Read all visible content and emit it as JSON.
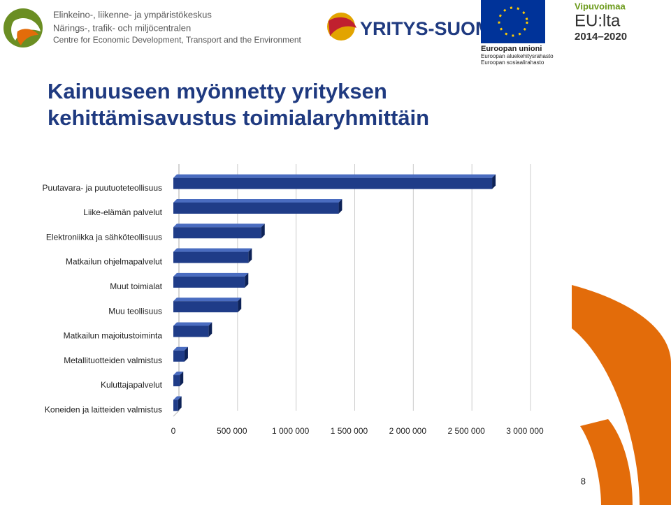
{
  "header": {
    "ely_lines": [
      "Elinkeino-, liikenne- ja ympäristökeskus",
      "Närings-, trafik- och miljöcentralen",
      "Centre for Economic Development, Transport and the Environment"
    ],
    "yritys_suomi": "YRITYS-SUOMI",
    "eu_lines": [
      "Euroopan unioni",
      "Euroopan aluekehitysrahasto",
      "Euroopan sosiaalirahasto"
    ],
    "vipuvoimaa": [
      "Vipuvoimaa",
      "EU:lta",
      "2014–2020"
    ]
  },
  "chart_data": {
    "type": "bar",
    "orientation": "horizontal",
    "title": "Kainuuseen myönnetty yrityksen kehittämisavustus toimialaryhmittäin",
    "categories": [
      "Puutavara- ja puutuoteteollisuus",
      "Liike-elämän palvelut",
      "Elektroniikka ja sähköteollisuus",
      "Matkailun ohjelmapalvelut",
      "Muut toimialat",
      "Muu teollisuus",
      "Matkailun majoitustoiminta",
      "Metallituotteiden valmistus",
      "Kuluttajapalvelut",
      "Koneiden ja laitteiden valmistus"
    ],
    "values": [
      2720000,
      1410000,
      750000,
      640000,
      610000,
      550000,
      300000,
      95000,
      55000,
      40000
    ],
    "color": "#1f3c88",
    "xlim": [
      0,
      3000000
    ],
    "xticks": [
      0,
      {
        "value": 500000,
        "label": "500 000"
      },
      {
        "value": 1000000,
        "label": "1 000 000"
      },
      {
        "value": 1500000,
        "label": "1 500 000"
      },
      {
        "value": 2000000,
        "label": "2 000 000"
      },
      {
        "value": 2500000,
        "label": "2 500 000"
      },
      {
        "value": 3000000,
        "label": "3 000 000"
      }
    ],
    "grid": true
  },
  "page_number": "8"
}
